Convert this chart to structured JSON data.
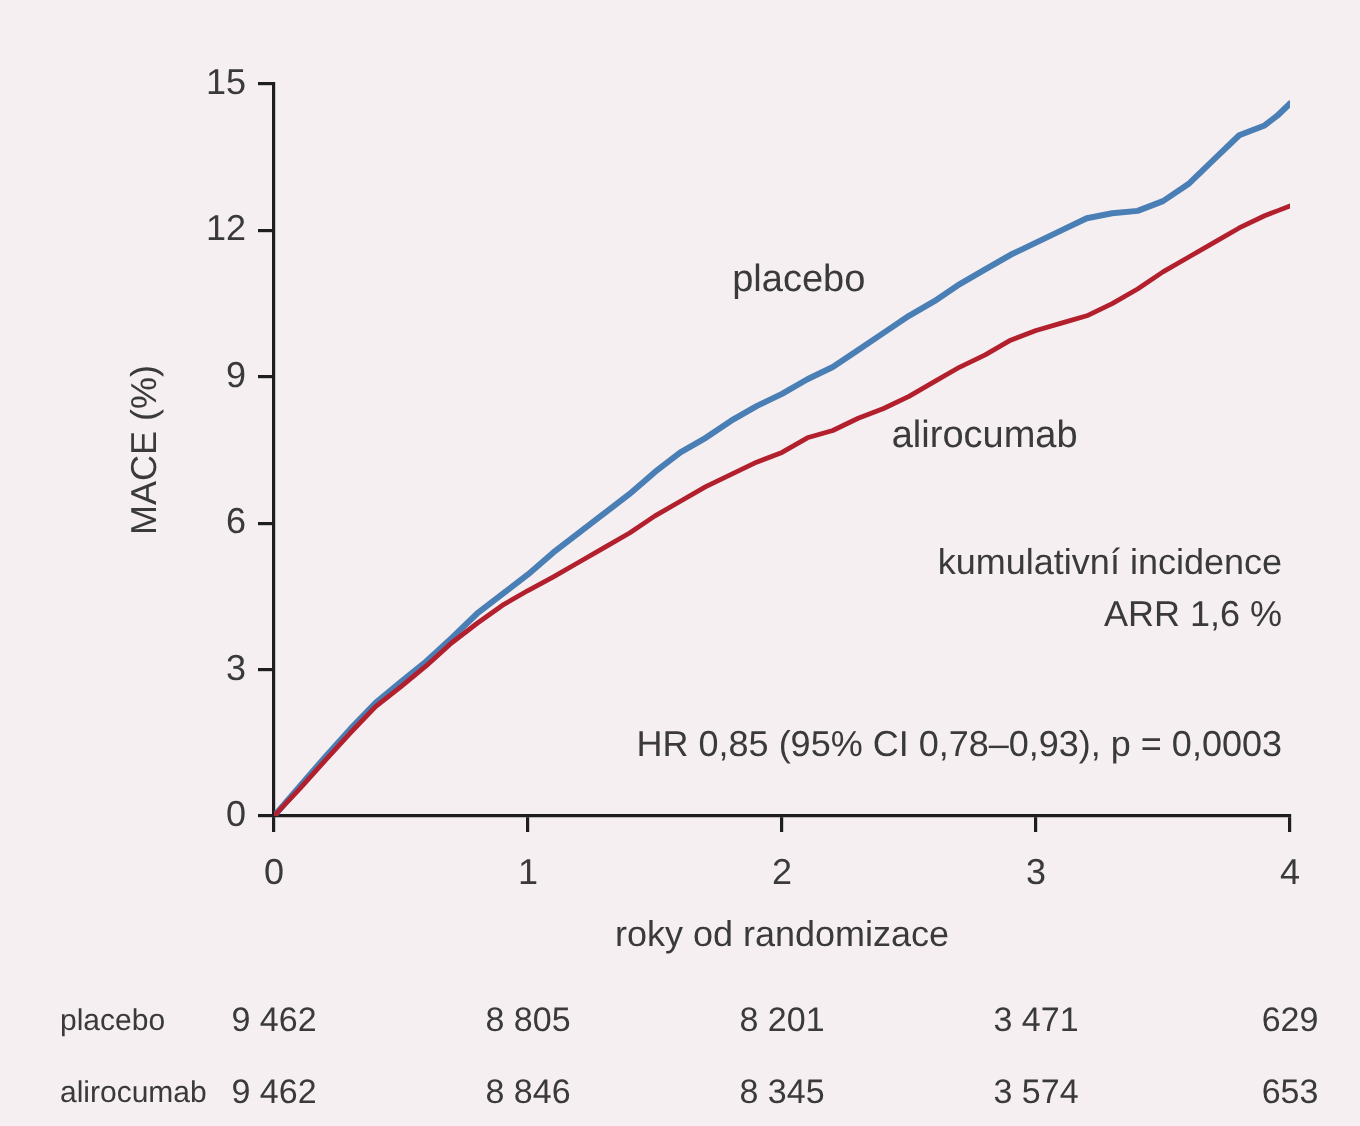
{
  "chart_data": {
    "type": "line",
    "ylabel": "MACE (%)",
    "xlabel": "roky od randomizace",
    "x": [
      0,
      0.1,
      0.2,
      0.3,
      0.4,
      0.5,
      0.6,
      0.7,
      0.8,
      0.9,
      1.0,
      1.1,
      1.2,
      1.3,
      1.4,
      1.5,
      1.6,
      1.7,
      1.8,
      1.9,
      2.0,
      2.1,
      2.2,
      2.3,
      2.4,
      2.5,
      2.6,
      2.7,
      2.8,
      2.9,
      3.0,
      3.1,
      3.2,
      3.3,
      3.4,
      3.5,
      3.6,
      3.7,
      3.8,
      3.9,
      3.95,
      4.0
    ],
    "series": [
      {
        "name": "placebo",
        "color": "#4a7fb5",
        "values": [
          0,
          0.6,
          1.2,
          1.78,
          2.32,
          2.75,
          3.17,
          3.65,
          4.15,
          4.55,
          4.95,
          5.4,
          5.8,
          6.2,
          6.6,
          7.05,
          7.45,
          7.75,
          8.1,
          8.4,
          8.65,
          8.95,
          9.2,
          9.55,
          9.9,
          10.25,
          10.55,
          10.9,
          11.2,
          11.5,
          11.75,
          12.0,
          12.25,
          12.35,
          12.4,
          12.6,
          12.95,
          13.45,
          13.95,
          14.15,
          14.35,
          14.6
        ]
      },
      {
        "name": "alirocumab",
        "color": "#b3202d",
        "values": [
          0,
          0.55,
          1.13,
          1.7,
          2.24,
          2.65,
          3.08,
          3.55,
          3.95,
          4.32,
          4.62,
          4.9,
          5.2,
          5.5,
          5.8,
          6.15,
          6.45,
          6.75,
          7.0,
          7.25,
          7.45,
          7.75,
          7.9,
          8.15,
          8.35,
          8.6,
          8.9,
          9.2,
          9.45,
          9.75,
          9.95,
          10.1,
          10.25,
          10.5,
          10.8,
          11.15,
          11.45,
          11.75,
          12.05,
          12.3,
          12.4,
          12.5
        ]
      }
    ],
    "xlim": [
      0,
      4
    ],
    "xticks": [
      0,
      1,
      2,
      3,
      4
    ],
    "ylim": [
      0,
      15
    ],
    "yticks": [
      0,
      3,
      6,
      9,
      12,
      15
    ],
    "annotations": [
      "kumulativní incidence",
      "ARR 1,6 %",
      "HR 0,85 (95% CI 0,78–0,93), p = 0,0003",
      "placebo",
      "9 462",
      "8 805",
      "8 201",
      "3 471",
      "629",
      "alirocumab",
      "9 462",
      "8 846",
      "8 345",
      "3 574",
      "653"
    ]
  }
}
